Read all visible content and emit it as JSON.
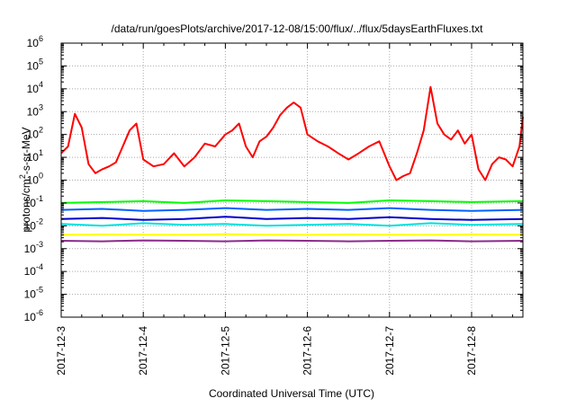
{
  "chart_data": {
    "type": "line",
    "title": "/data/run/goesPlots/archive/2017-12-08/15:00/flux/../flux/5daysEarthFluxes.txt",
    "xlabel": "Coordinated Universal Time (UTC)",
    "ylabel": "protons/cm2-s-sr-MeV",
    "ylabel_parts": {
      "prefix": "protons/cm",
      "sup": "2",
      "suffix": "-s-sr-MeV"
    },
    "y_scale": "log",
    "ylim": [
      1e-06,
      1000000.0
    ],
    "y_ticks": [
      {
        "base": "10",
        "exp": "-6"
      },
      {
        "base": "10",
        "exp": "-5"
      },
      {
        "base": "10",
        "exp": "-4"
      },
      {
        "base": "10",
        "exp": "-3"
      },
      {
        "base": "10",
        "exp": "-2"
      },
      {
        "base": "10",
        "exp": "-1"
      },
      {
        "base": "10",
        "exp": "0"
      },
      {
        "base": "10",
        "exp": "1"
      },
      {
        "base": "10",
        "exp": "2"
      },
      {
        "base": "10",
        "exp": "3"
      },
      {
        "base": "10",
        "exp": "4"
      },
      {
        "base": "10",
        "exp": "5"
      },
      {
        "base": "10",
        "exp": "6"
      }
    ],
    "x_tick_labels": [
      "2017-12-3",
      "2017-12-4",
      "2017-12-5",
      "2017-12-6",
      "2017-12-7",
      "2017-12-8"
    ],
    "xlim": [
      "2017-12-03 00:00",
      "2017-12-08 15:00"
    ],
    "grid": true,
    "legend": "none",
    "series": [
      {
        "color": "#ff0000",
        "x": [
          "2017-12-03 00:00",
          "2017-12-03 02:00",
          "2017-12-03 04:00",
          "2017-12-03 06:00",
          "2017-12-03 08:00",
          "2017-12-03 10:00",
          "2017-12-03 12:00",
          "2017-12-03 14:00",
          "2017-12-03 16:00",
          "2017-12-03 18:00",
          "2017-12-03 20:00",
          "2017-12-03 22:00",
          "2017-12-04 00:00",
          "2017-12-04 03:00",
          "2017-12-04 06:00",
          "2017-12-04 09:00",
          "2017-12-04 12:00",
          "2017-12-04 15:00",
          "2017-12-04 18:00",
          "2017-12-04 21:00",
          "2017-12-05 00:00",
          "2017-12-05 02:00",
          "2017-12-05 04:00",
          "2017-12-05 06:00",
          "2017-12-05 08:00",
          "2017-12-05 10:00",
          "2017-12-05 12:00",
          "2017-12-05 14:00",
          "2017-12-05 16:00",
          "2017-12-05 18:00",
          "2017-12-05 20:00",
          "2017-12-05 22:00",
          "2017-12-06 00:00",
          "2017-12-06 03:00",
          "2017-12-06 06:00",
          "2017-12-06 09:00",
          "2017-12-06 12:00",
          "2017-12-06 15:00",
          "2017-12-06 18:00",
          "2017-12-06 21:00",
          "2017-12-07 00:00",
          "2017-12-07 02:00",
          "2017-12-07 04:00",
          "2017-12-07 06:00",
          "2017-12-07 08:00",
          "2017-12-07 10:00",
          "2017-12-07 12:00",
          "2017-12-07 14:00",
          "2017-12-07 16:00",
          "2017-12-07 18:00",
          "2017-12-07 20:00",
          "2017-12-07 22:00",
          "2017-12-08 00:00",
          "2017-12-08 02:00",
          "2017-12-08 04:00",
          "2017-12-08 06:00",
          "2017-12-08 08:00",
          "2017-12-08 10:00",
          "2017-12-08 12:00",
          "2017-12-08 14:00",
          "2017-12-08 15:00"
        ],
        "values": [
          15,
          30,
          800,
          200,
          5,
          2,
          3,
          4,
          6,
          30,
          150,
          300,
          8,
          4,
          5,
          15,
          4,
          10,
          40,
          30,
          100,
          150,
          300,
          30,
          10,
          50,
          80,
          200,
          700,
          1500,
          2500,
          1500,
          100,
          50,
          30,
          15,
          8,
          15,
          30,
          50,
          4,
          1,
          1.5,
          2,
          15,
          150,
          12000,
          300,
          100,
          60,
          150,
          40,
          100,
          3,
          1,
          5,
          10,
          8,
          4,
          30,
          600
        ]
      },
      {
        "color": "#00ff00",
        "x": [
          "2017-12-03 00:00",
          "2017-12-03 12:00",
          "2017-12-04 00:00",
          "2017-12-04 12:00",
          "2017-12-05 00:00",
          "2017-12-05 12:00",
          "2017-12-06 00:00",
          "2017-12-06 12:00",
          "2017-12-07 00:00",
          "2017-12-07 12:00",
          "2017-12-08 00:00",
          "2017-12-08 15:00"
        ],
        "values": [
          0.1,
          0.11,
          0.12,
          0.1,
          0.13,
          0.12,
          0.11,
          0.1,
          0.13,
          0.12,
          0.11,
          0.12
        ]
      },
      {
        "color": "#00e0e0",
        "x": [
          "2017-12-03 00:00",
          "2017-12-03 12:00",
          "2017-12-04 00:00",
          "2017-12-04 12:00",
          "2017-12-05 00:00",
          "2017-12-05 12:00",
          "2017-12-06 00:00",
          "2017-12-06 12:00",
          "2017-12-07 00:00",
          "2017-12-07 12:00",
          "2017-12-08 00:00",
          "2017-12-08 15:00"
        ],
        "values": [
          0.012,
          0.01,
          0.013,
          0.011,
          0.012,
          0.01,
          0.011,
          0.012,
          0.01,
          0.013,
          0.011,
          0.012
        ]
      },
      {
        "color": "#0060ff",
        "x": [
          "2017-12-03 00:00",
          "2017-12-03 12:00",
          "2017-12-04 00:00",
          "2017-12-04 12:00",
          "2017-12-05 00:00",
          "2017-12-05 12:00",
          "2017-12-06 00:00",
          "2017-12-06 12:00",
          "2017-12-07 00:00",
          "2017-12-07 12:00",
          "2017-12-08 00:00",
          "2017-12-08 15:00"
        ],
        "values": [
          0.05,
          0.055,
          0.045,
          0.05,
          0.06,
          0.05,
          0.055,
          0.05,
          0.06,
          0.05,
          0.045,
          0.05
        ]
      },
      {
        "color": "#0000cc",
        "x": [
          "2017-12-03 00:00",
          "2017-12-03 12:00",
          "2017-12-04 00:00",
          "2017-12-04 12:00",
          "2017-12-05 00:00",
          "2017-12-05 12:00",
          "2017-12-06 00:00",
          "2017-12-06 12:00",
          "2017-12-07 00:00",
          "2017-12-07 12:00",
          "2017-12-08 00:00",
          "2017-12-08 15:00"
        ],
        "values": [
          0.02,
          0.022,
          0.018,
          0.02,
          0.025,
          0.02,
          0.022,
          0.02,
          0.024,
          0.02,
          0.018,
          0.02
        ]
      },
      {
        "color": "#ffff00",
        "x": [
          "2017-12-03 00:00",
          "2017-12-03 12:00",
          "2017-12-04 00:00",
          "2017-12-04 12:00",
          "2017-12-05 00:00",
          "2017-12-05 12:00",
          "2017-12-06 00:00",
          "2017-12-06 12:00",
          "2017-12-07 00:00",
          "2017-12-07 12:00",
          "2017-12-08 00:00",
          "2017-12-08 15:00"
        ],
        "values": [
          0.004,
          0.0042,
          0.0041,
          0.004,
          0.0043,
          0.0041,
          0.004,
          0.0042,
          0.0041,
          0.004,
          0.0042,
          0.0041
        ]
      },
      {
        "color": "#8b2b8b",
        "x": [
          "2017-12-03 00:00",
          "2017-12-03 12:00",
          "2017-12-04 00:00",
          "2017-12-04 12:00",
          "2017-12-05 00:00",
          "2017-12-05 12:00",
          "2017-12-06 00:00",
          "2017-12-06 12:00",
          "2017-12-07 00:00",
          "2017-12-07 12:00",
          "2017-12-08 00:00",
          "2017-12-08 15:00"
        ],
        "values": [
          0.0022,
          0.0021,
          0.0023,
          0.0022,
          0.0021,
          0.0023,
          0.0022,
          0.0021,
          0.0022,
          0.0023,
          0.0021,
          0.0022
        ]
      }
    ]
  }
}
